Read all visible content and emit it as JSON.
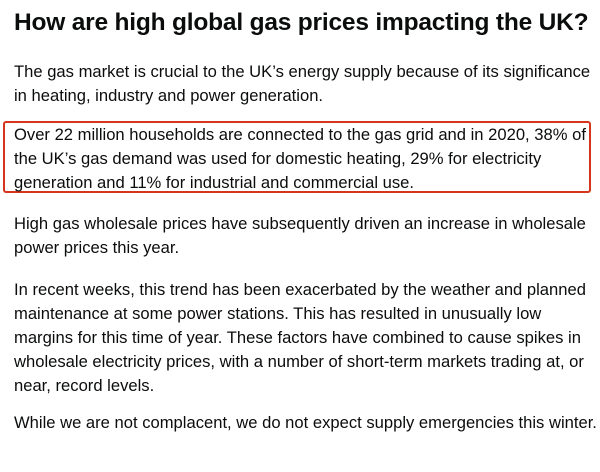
{
  "heading": "How are high global gas prices impacting the UK?",
  "paragraphs": [
    "The gas market is crucial to the UK’s energy supply because of its significance in heating, industry and power generation.",
    "Over 22 million households are connected to the gas grid and in 2020, 38% of the UK’s gas demand was used for domestic heating, 29% for electricity generation and 11% for industrial and commercial use.",
    "High gas wholesale prices have subsequently driven an increase in wholesale power prices this year.",
    "In recent weeks, this trend has been exacerbated by the weather and planned maintenance at some power stations. This has resulted in unusually low margins for this time of year. These factors have combined to cause spikes in wholesale electricity prices, with a number of short-term markets trading at, or near, record levels.",
    "While we are not complacent, we do not expect supply emergencies this winter."
  ],
  "highlight_color": "#d4351c",
  "text_color": "#0b0c0c"
}
